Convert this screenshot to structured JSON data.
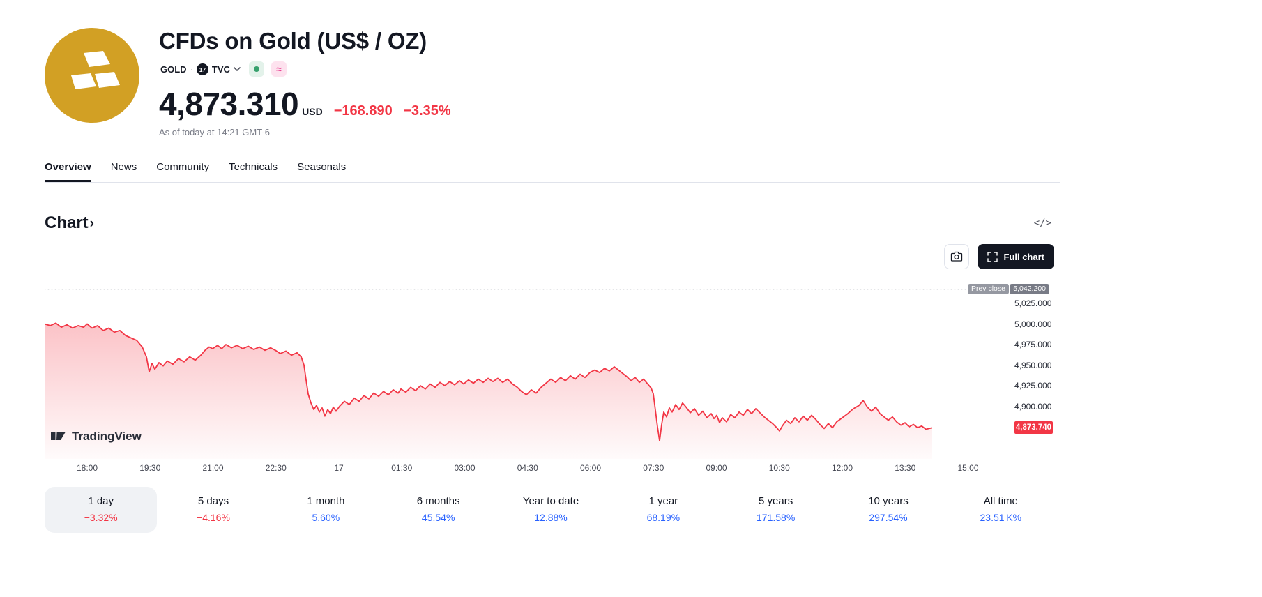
{
  "header": {
    "title": "CFDs on Gold (US$ / OZ)",
    "symbol": "GOLD",
    "separator": "·",
    "exchange": "TVC",
    "price": "4,873.310",
    "currency": "USD",
    "change_abs": "−168.890",
    "change_pct": "−3.35%",
    "as_of": "As of today at 14:21 GMT-6",
    "alt_badge": "≈"
  },
  "tabs": [
    {
      "label": "Overview",
      "active": true
    },
    {
      "label": "News",
      "active": false
    },
    {
      "label": "Community",
      "active": false
    },
    {
      "label": "Technicals",
      "active": false
    },
    {
      "label": "Seasonals",
      "active": false
    }
  ],
  "section": {
    "title": "Chart",
    "chevron": "›",
    "embed_icon": "</>"
  },
  "toolbar": {
    "full_chart_label": "Full chart"
  },
  "watermark": {
    "text": "TradingView"
  },
  "colors": {
    "down": "#f23645",
    "up": "#2962ff",
    "line": "#f23645",
    "gold": "#d2a024"
  },
  "chart_data": {
    "type": "area",
    "title": "CFDs on Gold (US$ / OZ) intraday",
    "prev_close_label": "Prev close",
    "prev_close_value": "5,042.200",
    "prev_close": 5042.2,
    "last_label": "4,873.740",
    "last": 4873.74,
    "y_ticks": [
      "5,025.000",
      "5,000.000",
      "4,975.000",
      "4,950.000",
      "4,925.000",
      "4,900.000"
    ],
    "x_ticks": [
      "18:00",
      "19:30",
      "21:00",
      "22:30",
      "17",
      "01:30",
      "03:00",
      "04:30",
      "06:00",
      "07:30",
      "09:00",
      "10:30",
      "12:00",
      "13:30",
      "15:00"
    ],
    "ylim": [
      4836,
      5048
    ],
    "grid": false,
    "points": [
      [
        0,
        5000
      ],
      [
        8,
        4998
      ],
      [
        16,
        5001
      ],
      [
        24,
        4996
      ],
      [
        32,
        4999
      ],
      [
        40,
        4995
      ],
      [
        48,
        4998
      ],
      [
        56,
        4996
      ],
      [
        61,
        5000
      ],
      [
        68,
        4995
      ],
      [
        76,
        4998
      ],
      [
        84,
        4992
      ],
      [
        92,
        4995
      ],
      [
        100,
        4990
      ],
      [
        108,
        4992
      ],
      [
        116,
        4986
      ],
      [
        124,
        4983
      ],
      [
        132,
        4980
      ],
      [
        140,
        4972
      ],
      [
        146,
        4960
      ],
      [
        150,
        4942
      ],
      [
        154,
        4952
      ],
      [
        158,
        4945
      ],
      [
        164,
        4953
      ],
      [
        170,
        4949
      ],
      [
        176,
        4955
      ],
      [
        184,
        4951
      ],
      [
        192,
        4958
      ],
      [
        200,
        4954
      ],
      [
        208,
        4960
      ],
      [
        216,
        4956
      ],
      [
        224,
        4962
      ],
      [
        230,
        4968
      ],
      [
        236,
        4972
      ],
      [
        241,
        4970
      ],
      [
        248,
        4974
      ],
      [
        254,
        4970
      ],
      [
        260,
        4975
      ],
      [
        268,
        4971
      ],
      [
        276,
        4974
      ],
      [
        284,
        4970
      ],
      [
        292,
        4973
      ],
      [
        300,
        4969
      ],
      [
        308,
        4972
      ],
      [
        316,
        4968
      ],
      [
        324,
        4971
      ],
      [
        331,
        4968
      ],
      [
        338,
        4964
      ],
      [
        346,
        4967
      ],
      [
        354,
        4962
      ],
      [
        362,
        4965
      ],
      [
        368,
        4960
      ],
      [
        372,
        4950
      ],
      [
        375,
        4932
      ],
      [
        378,
        4915
      ],
      [
        382,
        4904
      ],
      [
        386,
        4896
      ],
      [
        390,
        4901
      ],
      [
        394,
        4893
      ],
      [
        398,
        4898
      ],
      [
        402,
        4888
      ],
      [
        406,
        4896
      ],
      [
        410,
        4891
      ],
      [
        414,
        4899
      ],
      [
        418,
        4894
      ],
      [
        423,
        4900
      ],
      [
        430,
        4906
      ],
      [
        437,
        4902
      ],
      [
        444,
        4910
      ],
      [
        451,
        4906
      ],
      [
        458,
        4913
      ],
      [
        465,
        4909
      ],
      [
        472,
        4916
      ],
      [
        479,
        4912
      ],
      [
        486,
        4918
      ],
      [
        493,
        4914
      ],
      [
        500,
        4920
      ],
      [
        507,
        4916
      ],
      [
        511,
        4921
      ],
      [
        518,
        4917
      ],
      [
        525,
        4923
      ],
      [
        532,
        4919
      ],
      [
        539,
        4925
      ],
      [
        546,
        4921
      ],
      [
        553,
        4927
      ],
      [
        560,
        4923
      ],
      [
        567,
        4929
      ],
      [
        574,
        4925
      ],
      [
        581,
        4930
      ],
      [
        588,
        4926
      ],
      [
        595,
        4931
      ],
      [
        601,
        4927
      ],
      [
        608,
        4932
      ],
      [
        615,
        4928
      ],
      [
        622,
        4933
      ],
      [
        629,
        4929
      ],
      [
        636,
        4934
      ],
      [
        643,
        4930
      ],
      [
        650,
        4934
      ],
      [
        657,
        4929
      ],
      [
        664,
        4933
      ],
      [
        671,
        4927
      ],
      [
        678,
        4923
      ],
      [
        684,
        4918
      ],
      [
        691,
        4914
      ],
      [
        698,
        4920
      ],
      [
        705,
        4916
      ],
      [
        712,
        4923
      ],
      [
        719,
        4928
      ],
      [
        726,
        4933
      ],
      [
        733,
        4929
      ],
      [
        740,
        4935
      ],
      [
        747,
        4931
      ],
      [
        754,
        4937
      ],
      [
        761,
        4933
      ],
      [
        768,
        4939
      ],
      [
        775,
        4935
      ],
      [
        782,
        4941
      ],
      [
        789,
        4944
      ],
      [
        796,
        4941
      ],
      [
        803,
        4946
      ],
      [
        810,
        4943
      ],
      [
        817,
        4948
      ],
      [
        823,
        4944
      ],
      [
        829,
        4940
      ],
      [
        835,
        4936
      ],
      [
        841,
        4931
      ],
      [
        847,
        4935
      ],
      [
        853,
        4929
      ],
      [
        859,
        4933
      ],
      [
        865,
        4927
      ],
      [
        870,
        4922
      ],
      [
        873,
        4915
      ],
      [
        876,
        4895
      ],
      [
        879,
        4875
      ],
      [
        882,
        4858
      ],
      [
        885,
        4878
      ],
      [
        888,
        4893
      ],
      [
        892,
        4887
      ],
      [
        896,
        4898
      ],
      [
        900,
        4893
      ],
      [
        905,
        4902
      ],
      [
        910,
        4896
      ],
      [
        915,
        4904
      ],
      [
        920,
        4899
      ],
      [
        926,
        4892
      ],
      [
        932,
        4897
      ],
      [
        938,
        4889
      ],
      [
        944,
        4894
      ],
      [
        950,
        4886
      ],
      [
        956,
        4891
      ],
      [
        960,
        4885
      ],
      [
        964,
        4889
      ],
      [
        968,
        4880
      ],
      [
        972,
        4886
      ],
      [
        978,
        4881
      ],
      [
        984,
        4890
      ],
      [
        990,
        4886
      ],
      [
        996,
        4893
      ],
      [
        1002,
        4889
      ],
      [
        1008,
        4896
      ],
      [
        1014,
        4891
      ],
      [
        1020,
        4897
      ],
      [
        1026,
        4892
      ],
      [
        1032,
        4887
      ],
      [
        1038,
        4883
      ],
      [
        1044,
        4879
      ],
      [
        1050,
        4874
      ],
      [
        1054,
        4870
      ],
      [
        1058,
        4876
      ],
      [
        1064,
        4883
      ],
      [
        1070,
        4879
      ],
      [
        1076,
        4886
      ],
      [
        1082,
        4881
      ],
      [
        1088,
        4888
      ],
      [
        1094,
        4883
      ],
      [
        1100,
        4889
      ],
      [
        1106,
        4884
      ],
      [
        1112,
        4878
      ],
      [
        1118,
        4873
      ],
      [
        1124,
        4879
      ],
      [
        1130,
        4874
      ],
      [
        1136,
        4881
      ],
      [
        1144,
        4886
      ],
      [
        1152,
        4891
      ],
      [
        1160,
        4897
      ],
      [
        1168,
        4901
      ],
      [
        1174,
        4907
      ],
      [
        1180,
        4899
      ],
      [
        1186,
        4894
      ],
      [
        1192,
        4899
      ],
      [
        1198,
        4891
      ],
      [
        1204,
        4887
      ],
      [
        1210,
        4883
      ],
      [
        1216,
        4887
      ],
      [
        1222,
        4881
      ],
      [
        1228,
        4877
      ],
      [
        1234,
        4880
      ],
      [
        1240,
        4875
      ],
      [
        1246,
        4878
      ],
      [
        1252,
        4874
      ],
      [
        1258,
        4876
      ],
      [
        1264,
        4872
      ],
      [
        1272,
        4873.74
      ]
    ]
  },
  "ranges": [
    {
      "label": "1 day",
      "value": "−3.32%",
      "trend": "down",
      "selected": true
    },
    {
      "label": "5 days",
      "value": "−4.16%",
      "trend": "down",
      "selected": false
    },
    {
      "label": "1 month",
      "value": "5.60%",
      "trend": "up",
      "selected": false
    },
    {
      "label": "6 months",
      "value": "45.54%",
      "trend": "up",
      "selected": false
    },
    {
      "label": "Year to date",
      "value": "12.88%",
      "trend": "up",
      "selected": false
    },
    {
      "label": "1 year",
      "value": "68.19%",
      "trend": "up",
      "selected": false
    },
    {
      "label": "5 years",
      "value": "171.58%",
      "trend": "up",
      "selected": false
    },
    {
      "label": "10 years",
      "value": "297.54%",
      "trend": "up",
      "selected": false
    },
    {
      "label": "All time",
      "value": "23.51 K%",
      "trend": "up",
      "selected": false
    }
  ]
}
